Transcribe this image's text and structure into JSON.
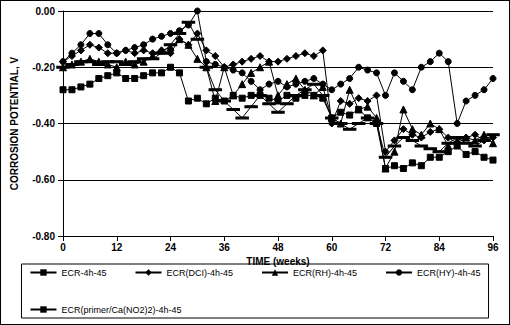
{
  "chart_data": {
    "type": "line",
    "xlabel": "TIME (weeks)",
    "ylabel": "CORROSION POTENTIAL, V",
    "x": [
      0,
      2,
      4,
      6,
      8,
      10,
      12,
      14,
      16,
      18,
      20,
      22,
      24,
      26,
      28,
      30,
      32,
      34,
      36,
      38,
      40,
      42,
      44,
      46,
      48,
      50,
      52,
      54,
      56,
      58,
      60,
      62,
      64,
      66,
      68,
      70,
      72,
      74,
      76,
      78,
      80,
      82,
      84,
      86,
      88,
      90,
      92,
      94,
      96
    ],
    "series": [
      {
        "name": "ECR-4h-45",
        "color": "#000000",
        "marker": "square",
        "values": [
          -0.28,
          -0.28,
          -0.27,
          -0.26,
          -0.24,
          -0.23,
          -0.22,
          -0.24,
          -0.24,
          -0.23,
          -0.22,
          -0.22,
          -0.2,
          -0.22,
          -0.32,
          -0.31,
          -0.33,
          -0.31,
          -0.32,
          -0.3,
          -0.31,
          -0.3,
          -0.3,
          -0.31,
          -0.32,
          -0.3,
          -0.31,
          -0.3,
          -0.3,
          -0.31,
          -0.38,
          -0.36,
          -0.37,
          -0.35,
          -0.38,
          -0.4,
          -0.56,
          -0.55,
          -0.56,
          -0.54,
          -0.55,
          -0.52,
          -0.52,
          -0.5,
          -0.48,
          -0.51,
          -0.5,
          -0.52,
          -0.53
        ]
      },
      {
        "name": "ECR(DCI)-4h-45",
        "color": "#000000",
        "marker": "diamond",
        "values": [
          -0.18,
          -0.16,
          -0.14,
          -0.12,
          -0.13,
          -0.15,
          -0.15,
          -0.14,
          -0.15,
          -0.14,
          -0.15,
          -0.14,
          -0.15,
          -0.1,
          -0.12,
          -0.08,
          -0.14,
          -0.16,
          -0.2,
          -0.19,
          -0.18,
          -0.17,
          -0.16,
          -0.18,
          -0.18,
          -0.17,
          -0.16,
          -0.15,
          -0.16,
          -0.14,
          -0.4,
          -0.32,
          -0.33,
          -0.31,
          -0.32,
          -0.3,
          -0.5,
          -0.46,
          -0.42,
          -0.44,
          -0.45,
          -0.43,
          -0.42,
          -0.45,
          -0.47,
          -0.45,
          -0.44,
          -0.46,
          -0.45
        ]
      },
      {
        "name": "ECR(RH)-4h-45",
        "color": "#000000",
        "marker": "triangle",
        "values": [
          -0.2,
          -0.19,
          -0.18,
          -0.17,
          -0.18,
          -0.19,
          -0.2,
          -0.18,
          -0.19,
          -0.18,
          -0.16,
          -0.14,
          -0.13,
          -0.1,
          -0.12,
          -0.17,
          -0.2,
          -0.32,
          -0.2,
          -0.3,
          -0.26,
          -0.22,
          -0.2,
          -0.18,
          -0.3,
          -0.26,
          -0.24,
          -0.28,
          -0.3,
          -0.27,
          -0.38,
          -0.4,
          -0.28,
          -0.35,
          -0.34,
          -0.38,
          -0.56,
          -0.5,
          -0.35,
          -0.42,
          -0.44,
          -0.4,
          -0.42,
          -0.48,
          -0.46,
          -0.45,
          -0.46,
          -0.44,
          -0.47
        ]
      },
      {
        "name": "ECR(HY)-4h-45",
        "color": "#000000",
        "marker": "circle",
        "values": [
          -0.18,
          -0.15,
          -0.12,
          -0.08,
          -0.08,
          -0.12,
          -0.15,
          -0.14,
          -0.13,
          -0.12,
          -0.1,
          -0.09,
          -0.08,
          -0.07,
          -0.05,
          0.0,
          -0.18,
          -0.19,
          -0.2,
          -0.21,
          -0.22,
          -0.25,
          -0.28,
          -0.26,
          -0.25,
          -0.27,
          -0.26,
          -0.25,
          -0.24,
          -0.26,
          -0.28,
          -0.26,
          -0.24,
          -0.2,
          -0.21,
          -0.22,
          -0.3,
          -0.22,
          -0.25,
          -0.28,
          -0.2,
          -0.18,
          -0.15,
          -0.18,
          -0.4,
          -0.32,
          -0.3,
          -0.28,
          -0.24
        ]
      },
      {
        "name": "ECR(primer/Ca(NO2)2)-4h-45",
        "color": "#000000",
        "marker": "dash",
        "values": [
          -0.2,
          -0.19,
          -0.18,
          -0.18,
          -0.19,
          -0.18,
          -0.18,
          -0.19,
          -0.18,
          -0.17,
          -0.17,
          -0.15,
          -0.12,
          -0.08,
          -0.04,
          -0.1,
          -0.2,
          -0.28,
          -0.32,
          -0.35,
          -0.38,
          -0.34,
          -0.3,
          -0.33,
          -0.36,
          -0.33,
          -0.3,
          -0.28,
          -0.26,
          -0.3,
          -0.38,
          -0.4,
          -0.42,
          -0.4,
          -0.38,
          -0.4,
          -0.52,
          -0.48,
          -0.45,
          -0.46,
          -0.48,
          -0.49,
          -0.5,
          -0.47,
          -0.45,
          -0.47,
          -0.48,
          -0.46,
          -0.44
        ]
      }
    ],
    "xlim": [
      0,
      96
    ],
    "xticks": [
      0,
      12,
      24,
      36,
      48,
      60,
      72,
      84,
      96
    ],
    "ylim": [
      -0.8,
      0
    ],
    "yticks": [
      {
        "value": -0.8,
        "label": "-0.80"
      },
      {
        "value": -0.6,
        "label": "-0.60"
      },
      {
        "value": -0.4,
        "label": "-0.40"
      },
      {
        "value": -0.2,
        "label": "-0.20"
      },
      {
        "value": 0,
        "label": "0.00"
      }
    ],
    "grid": true,
    "legend": "bottom"
  }
}
